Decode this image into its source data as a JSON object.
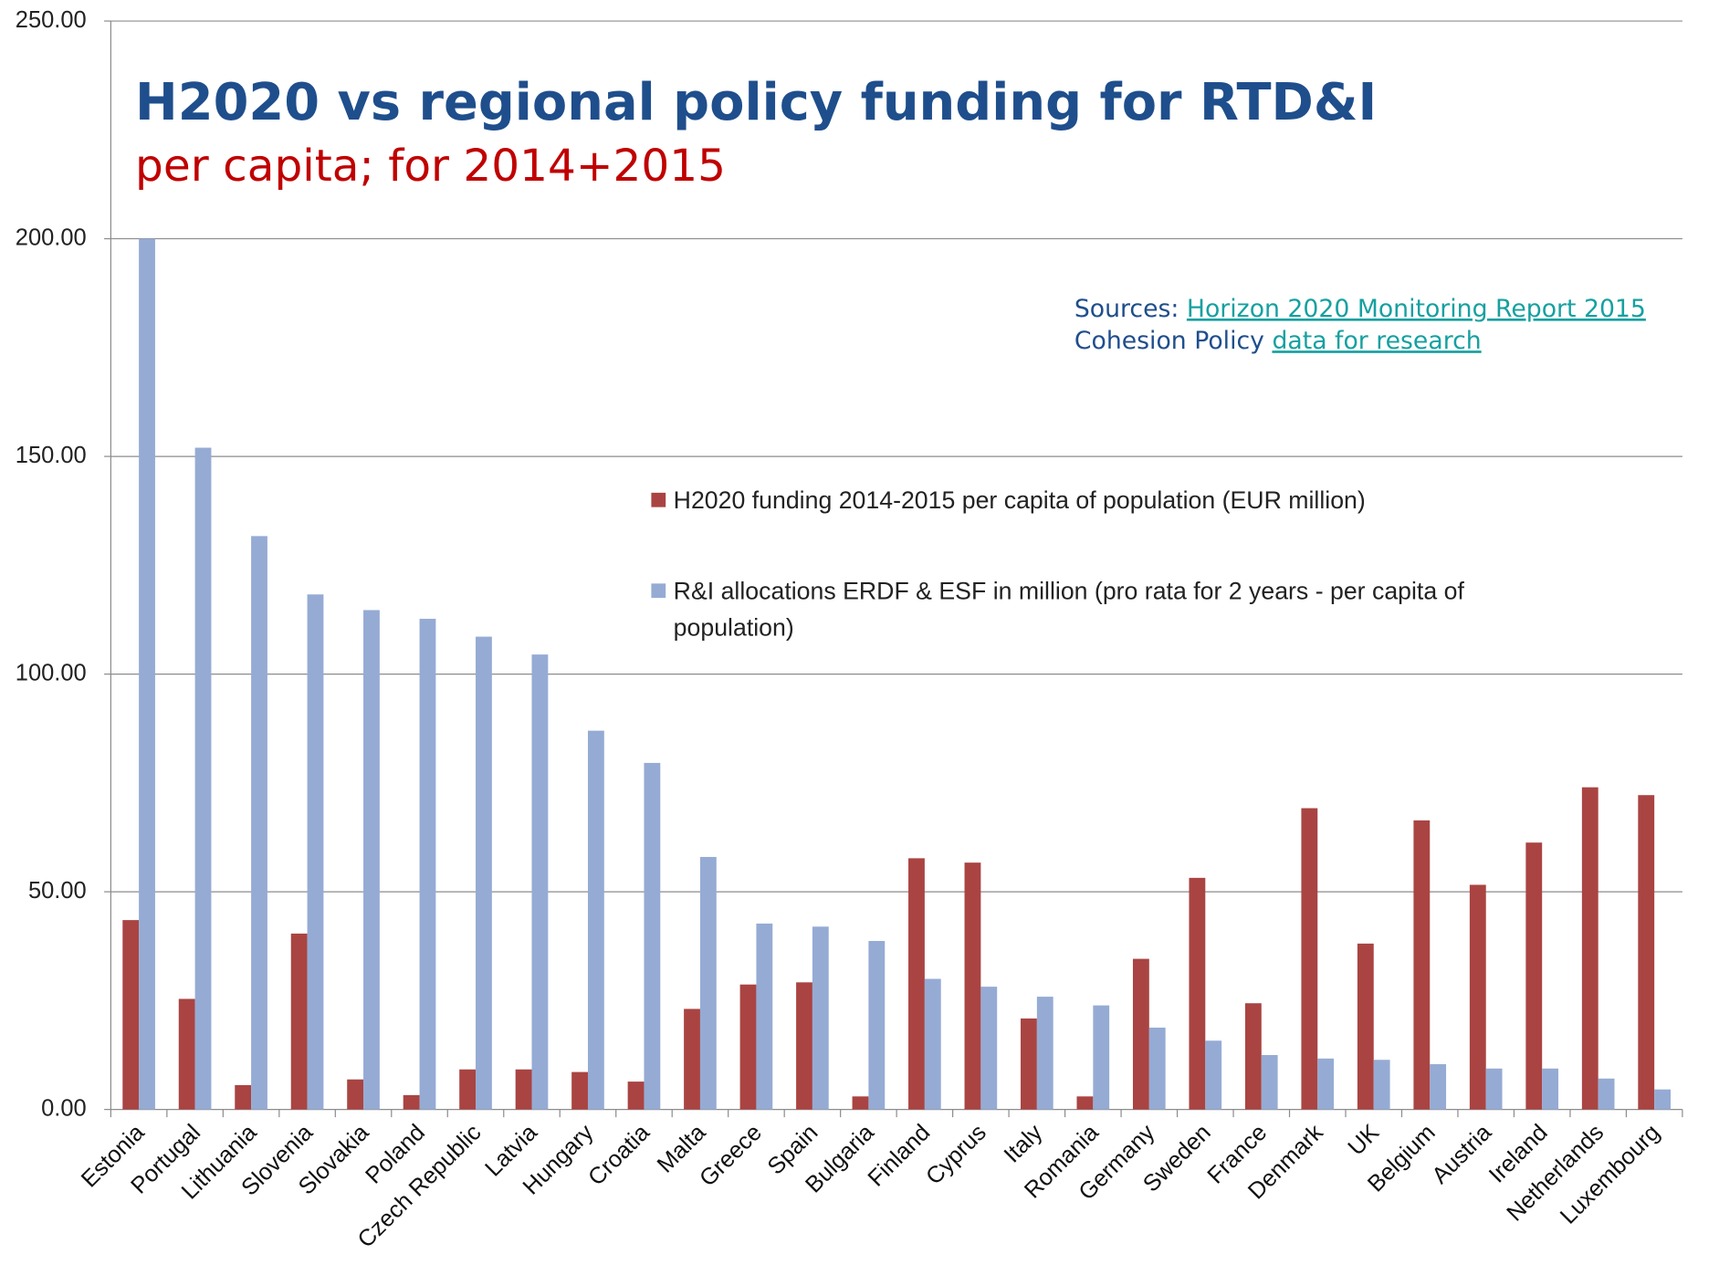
{
  "chart_data": {
    "type": "bar",
    "title": "H2020 vs regional policy funding for RTD&I",
    "subtitle": "per capita; for 2014+2015",
    "sources": {
      "label": "Sources:",
      "link1": "Horizon 2020 Monitoring Report 2015",
      "line2": "Cohesion Policy",
      "link2": "data for research"
    },
    "categories": [
      "Estonia",
      "Portugal",
      "Lithuania",
      "Slovenia",
      "Slovakia",
      "Poland",
      "Czech Republic",
      "Latvia",
      "Hungary",
      "Croatia",
      "Malta",
      "Greece",
      "Spain",
      "Bulgaria",
      "Finland",
      "Cyprus",
      "Italy",
      "Romania",
      "Germany",
      "Sweden",
      "France",
      "Denmark",
      "UK",
      "Belgium",
      "Austria",
      "Ireland",
      "Netherlands",
      "Luxembourg"
    ],
    "series": [
      {
        "name": "H2020 funding 2014-2015 per capita of population (EUR million)",
        "color": "#a94442",
        "values": [
          43.5,
          25.4,
          5.6,
          40.4,
          6.9,
          3.3,
          9.2,
          9.2,
          8.6,
          6.4,
          23.1,
          28.7,
          29.2,
          3.0,
          57.7,
          56.7,
          20.9,
          3.0,
          34.6,
          53.2,
          24.4,
          69.2,
          38.1,
          66.4,
          51.6,
          61.3,
          74.0,
          72.2
        ]
      },
      {
        "name": "R&I allocations ERDF & ESF in million (pro rata for 2 years - per capita of population)",
        "color": "#95abd4",
        "values": [
          200,
          152,
          131.7,
          118.3,
          114.7,
          112.7,
          108.6,
          104.5,
          87,
          79.6,
          58,
          42.7,
          42,
          38.7,
          30,
          28.2,
          25.9,
          23.9,
          18.8,
          15.8,
          12.5,
          11.7,
          11.4,
          10.4,
          9.4,
          9.4,
          7.1,
          4.6
        ]
      }
    ],
    "ylim": [
      0,
      250
    ],
    "yticks": [
      {
        "value": 0,
        "label": "0.00"
      },
      {
        "value": 50,
        "label": "50.00"
      },
      {
        "value": 100,
        "label": "100.00"
      },
      {
        "value": 150,
        "label": "150.00"
      },
      {
        "value": 200,
        "label": "200.00"
      },
      {
        "value": 250,
        "label": "250.00"
      }
    ],
    "grid": true
  }
}
